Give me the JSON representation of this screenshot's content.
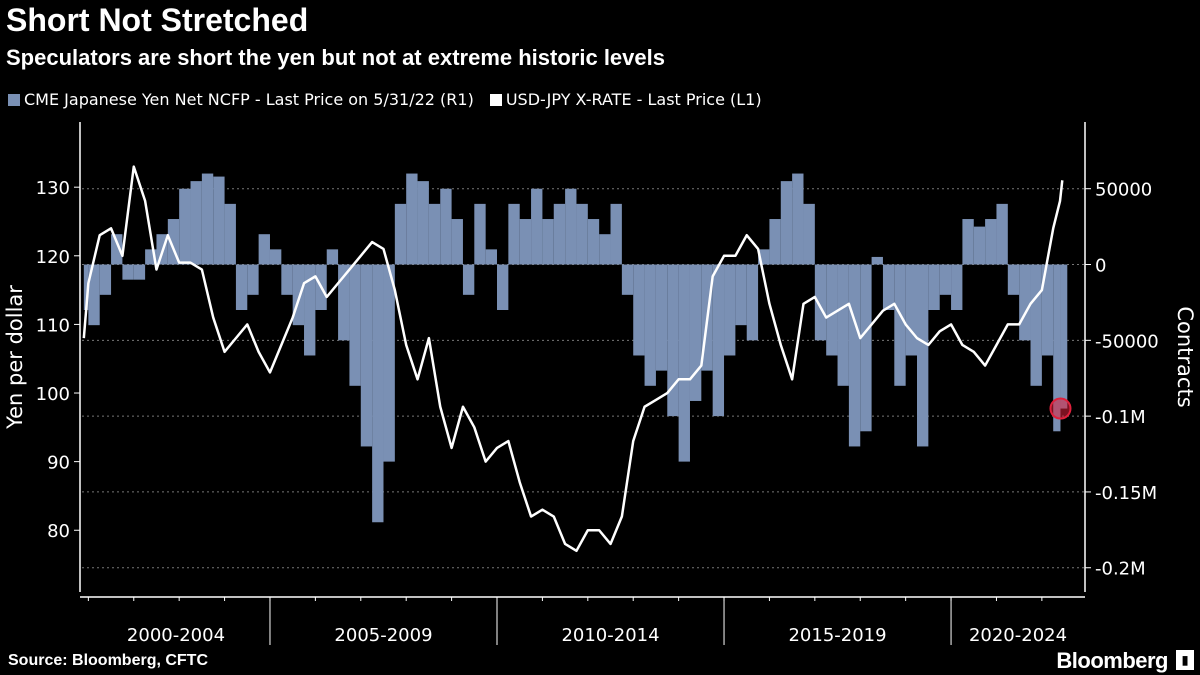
{
  "title": "Short Not Stretched",
  "subtitle": "Speculators are short the yen but not at extreme historic levels",
  "source": "Source: Bloomberg, CFTC",
  "brand": "Bloomberg",
  "colors": {
    "bars": "#7a90b4",
    "line": "#ffffff",
    "marker": "#e0203c",
    "background": "#000000"
  },
  "chart_data": {
    "type": "bar+line",
    "legend_position": "top-left",
    "x_tick_labels": [
      "2000-2004",
      "2005-2009",
      "2010-2014",
      "2015-2019",
      "2020-2024"
    ],
    "xlim": [
      2000.86,
      2022.95
    ],
    "left_axis": {
      "label": "Yen per dollar",
      "ticks": [
        80,
        90,
        100,
        110,
        120,
        130
      ],
      "ylim": [
        71,
        139.5
      ]
    },
    "right_axis": {
      "label": "Contracts",
      "ticks": [
        50000,
        0,
        -50000,
        -100000,
        -150000,
        -200000
      ],
      "tick_labels": [
        "50000",
        "0",
        "-50000",
        "-0.1M",
        "-0.15M",
        "-0.2M"
      ],
      "ylim": [
        -216000,
        94000
      ]
    },
    "grid": "dotted horizontal at right-axis ticks",
    "series": [
      {
        "name": "CME Japanese Yen Net NCFP - Last Price on 5/31/22 (R1)",
        "axis": "right",
        "type": "bar",
        "x": [
          2000.9,
          2001.0,
          2001.25,
          2001.5,
          2001.75,
          2002.0,
          2002.25,
          2002.5,
          2002.75,
          2003.0,
          2003.25,
          2003.5,
          2003.75,
          2004.0,
          2004.25,
          2004.5,
          2004.75,
          2005.0,
          2005.25,
          2005.5,
          2005.75,
          2006.0,
          2006.25,
          2006.5,
          2006.75,
          2007.0,
          2007.25,
          2007.5,
          2007.75,
          2008.0,
          2008.25,
          2008.5,
          2008.75,
          2009.0,
          2009.25,
          2009.5,
          2009.75,
          2010.0,
          2010.25,
          2010.5,
          2010.75,
          2011.0,
          2011.25,
          2011.5,
          2011.75,
          2012.0,
          2012.25,
          2012.5,
          2012.75,
          2013.0,
          2013.25,
          2013.5,
          2013.75,
          2014.0,
          2014.25,
          2014.5,
          2014.75,
          2015.0,
          2015.25,
          2015.5,
          2015.75,
          2016.0,
          2016.25,
          2016.5,
          2016.75,
          2017.0,
          2017.25,
          2017.5,
          2017.75,
          2018.0,
          2018.25,
          2018.5,
          2018.75,
          2019.0,
          2019.25,
          2019.5,
          2019.75,
          2020.0,
          2020.25,
          2020.5,
          2020.75,
          2021.0,
          2021.25,
          2021.5,
          2021.75,
          2022.0,
          2022.25,
          2022.41
        ],
        "values": [
          -30000,
          -40000,
          -20000,
          20000,
          -10000,
          -10000,
          10000,
          20000,
          30000,
          50000,
          55000,
          60000,
          58000,
          40000,
          -30000,
          -20000,
          20000,
          10000,
          -20000,
          -40000,
          -60000,
          -30000,
          10000,
          -50000,
          -80000,
          -120000,
          -170000,
          -130000,
          40000,
          60000,
          55000,
          40000,
          50000,
          30000,
          -20000,
          40000,
          10000,
          -30000,
          40000,
          30000,
          50000,
          30000,
          40000,
          50000,
          40000,
          30000,
          20000,
          40000,
          -20000,
          -60000,
          -80000,
          -70000,
          -100000,
          -130000,
          -90000,
          -70000,
          -100000,
          -60000,
          -40000,
          -50000,
          10000,
          30000,
          55000,
          60000,
          40000,
          -50000,
          -60000,
          -80000,
          -120000,
          -110000,
          5000,
          -30000,
          -80000,
          -60000,
          -120000,
          -30000,
          -20000,
          -30000,
          30000,
          25000,
          30000,
          40000,
          -20000,
          -50000,
          -80000,
          -60000,
          -110000,
          -95000
        ]
      },
      {
        "name": "USD-JPY X-RATE - Last Price (L1)",
        "axis": "left",
        "type": "line",
        "x": [
          2000.9,
          2001.0,
          2001.25,
          2001.5,
          2001.75,
          2002.0,
          2002.25,
          2002.5,
          2002.75,
          2003.0,
          2003.25,
          2003.5,
          2003.75,
          2004.0,
          2004.25,
          2004.5,
          2004.75,
          2005.0,
          2005.25,
          2005.5,
          2005.75,
          2006.0,
          2006.25,
          2006.5,
          2006.75,
          2007.0,
          2007.25,
          2007.5,
          2007.75,
          2008.0,
          2008.25,
          2008.5,
          2008.75,
          2009.0,
          2009.25,
          2009.5,
          2009.75,
          2010.0,
          2010.25,
          2010.5,
          2010.75,
          2011.0,
          2011.25,
          2011.5,
          2011.75,
          2012.0,
          2012.25,
          2012.5,
          2012.75,
          2013.0,
          2013.25,
          2013.5,
          2013.75,
          2014.0,
          2014.25,
          2014.5,
          2014.75,
          2015.0,
          2015.25,
          2015.5,
          2015.75,
          2016.0,
          2016.25,
          2016.5,
          2016.75,
          2017.0,
          2017.25,
          2017.5,
          2017.75,
          2018.0,
          2018.25,
          2018.5,
          2018.75,
          2019.0,
          2019.25,
          2019.5,
          2019.75,
          2020.0,
          2020.25,
          2020.5,
          2020.75,
          2021.0,
          2021.25,
          2021.5,
          2021.75,
          2022.0,
          2022.25,
          2022.4,
          2022.45
        ],
        "values": [
          108,
          116,
          123,
          124,
          120,
          133,
          128,
          118,
          123,
          119,
          119,
          118,
          111,
          106,
          108,
          110,
          106,
          103,
          107,
          111,
          116,
          117,
          114,
          116,
          118,
          120,
          122,
          121,
          115,
          107,
          102,
          108,
          98,
          92,
          98,
          95,
          90,
          92,
          93,
          87,
          82,
          83,
          82,
          78,
          77,
          80,
          80,
          78,
          82,
          93,
          98,
          99,
          100,
          102,
          102,
          104,
          117,
          120,
          120,
          123,
          121,
          113,
          107,
          102,
          113,
          114,
          111,
          112,
          113,
          108,
          110,
          112,
          113,
          110,
          108,
          107,
          109,
          110,
          107,
          106,
          104,
          107,
          110,
          110,
          113,
          115,
          124,
          128,
          131
        ]
      }
    ],
    "highlight": {
      "x": 2022.41,
      "value": -95000,
      "axis": "right"
    }
  }
}
